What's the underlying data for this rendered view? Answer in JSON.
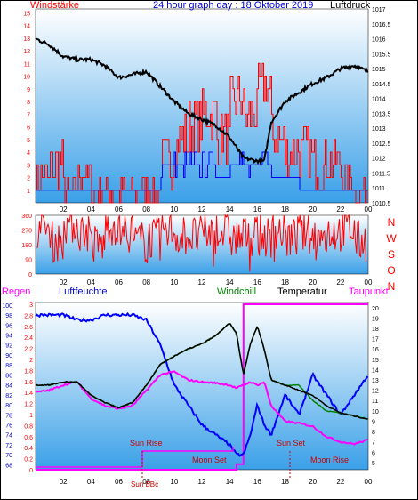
{
  "header": {
    "left_label": "Windstärke",
    "title": "24 hour graph day : 18 Oktober 2019",
    "right_label": "Luftdruck"
  },
  "bottom_labels": {
    "regen": "Regen",
    "luftfeuchte": "Luftfeuchte",
    "windchill": "Windchill",
    "temperatur": "Temperatur",
    "taupunkt": "Taupunkt"
  },
  "direction_labels": [
    "N",
    "W",
    "S",
    "O",
    "N"
  ],
  "events": {
    "sun_rise": "Sun Rise",
    "moon_set": "Moon Set",
    "sun_set": "Sun Set",
    "moon_rise": "Moon Rise",
    "sun_marker": "Sun BBc"
  },
  "colors": {
    "wind_speed": "#ff0000",
    "wind_gust": "#0000ff",
    "pressure": "#000000",
    "humidity": "#0000ff",
    "temperature": "#000000",
    "windchill": "#008000",
    "dewpoint": "#ff00ff",
    "rain": "#ff00ff",
    "plot_top": "#ffffff",
    "plot_bottom": "#3aa0e8"
  },
  "chart_data": [
    {
      "type": "line",
      "name": "wind-pressure",
      "title": "24 hour graph day : 18 Oktober 2019",
      "x_ticks": [
        "02",
        "04",
        "06",
        "08",
        "10",
        "12",
        "14",
        "16",
        "18",
        "20",
        "22",
        "00"
      ],
      "left_axis": {
        "label": "Windstärke",
        "ticks": [
          "1",
          "2",
          "3",
          "4",
          "5",
          "6",
          "7",
          "8",
          "9",
          "10",
          "11",
          "12",
          "13",
          "14",
          "15"
        ],
        "range": [
          0,
          15.3
        ]
      },
      "right_axis": {
        "label": "Luftdruck",
        "ticks": [
          "1010.5",
          "1011",
          "1011.5",
          "1012",
          "1012.5",
          "1013",
          "1013.5",
          "1014",
          "1014.5",
          "1015",
          "1015.5",
          "1016",
          "1016.5",
          "1017"
        ],
        "range": [
          1010.5,
          1017
        ]
      },
      "pressure_hpa": {
        "hours": [
          0,
          1,
          2,
          3,
          4,
          5,
          6,
          7,
          8,
          9,
          10,
          11,
          12,
          13,
          14,
          15,
          16,
          16.5,
          17,
          18,
          19,
          20,
          21,
          22,
          23,
          24
        ],
        "values": [
          1016.0,
          1015.8,
          1015.4,
          1015.3,
          1015.3,
          1015.1,
          1014.7,
          1014.8,
          1014.9,
          1014.4,
          1013.9,
          1013.5,
          1013.3,
          1013.1,
          1012.7,
          1012.0,
          1011.9,
          1011.9,
          1013.2,
          1013.9,
          1014.2,
          1014.5,
          1014.7,
          1015.0,
          1015.1,
          1014.9
        ]
      },
      "wind_speed_bft_hourly": [
        2,
        3,
        1,
        2,
        1,
        1,
        1,
        1,
        1,
        3,
        5,
        6,
        7,
        5,
        8,
        7,
        9,
        5,
        4,
        4,
        3,
        3,
        2,
        1
      ],
      "wind_gust_bft_hourly": [
        1,
        1,
        1,
        1,
        1,
        1,
        1,
        1,
        1,
        3,
        3,
        3,
        3,
        2,
        3,
        3,
        4,
        2,
        2,
        1,
        1,
        1,
        1,
        1
      ]
    },
    {
      "type": "line",
      "name": "wind-direction",
      "x_ticks": [
        "02",
        "04",
        "06",
        "08",
        "10",
        "12",
        "14",
        "16",
        "18",
        "20",
        "22",
        "00"
      ],
      "left_axis": {
        "ticks": [
          "0",
          "90",
          "180",
          "270",
          "360"
        ],
        "range": [
          0,
          360
        ]
      },
      "right_axis": {
        "ticks": [
          "N",
          "W",
          "S",
          "O",
          "N"
        ]
      },
      "direction_deg_hourly": [
        280,
        200,
        310,
        260,
        180,
        300,
        250,
        200,
        220,
        270,
        240,
        230,
        250,
        260,
        220,
        240,
        230,
        260,
        220,
        250,
        230,
        260,
        270,
        200
      ]
    },
    {
      "type": "line",
      "name": "humidity-temperature",
      "x_ticks": [
        "02",
        "04",
        "06",
        "08",
        "10",
        "12",
        "14",
        "16",
        "18",
        "20",
        "22",
        "00"
      ],
      "left_axis": {
        "label": "Regen",
        "ticks": [
          "0",
          "0.2",
          "0.4",
          "0.6",
          "0.8",
          "1",
          "1.2",
          "1.4",
          "1.6",
          "1.8",
          "2",
          "2.2",
          "2.4",
          "2.6",
          "2.8",
          "3"
        ],
        "range": [
          0,
          3
        ]
      },
      "humidity_axis": {
        "label": "Luftfeuchte",
        "ticks": [
          "68",
          "70",
          "72",
          "74",
          "76",
          "78",
          "80",
          "82",
          "84",
          "86",
          "88",
          "90",
          "92",
          "94",
          "96",
          "98",
          "100"
        ],
        "range": [
          67,
          100.5
        ]
      },
      "right_axis": {
        "label": "Temperatur",
        "ticks": [
          "5",
          "6",
          "7",
          "8",
          "9",
          "10",
          "11",
          "12",
          "13",
          "14",
          "15",
          "16",
          "17",
          "18",
          "19",
          "20"
        ],
        "range": [
          4.3,
          20.5
        ]
      },
      "hours": [
        0,
        1,
        2,
        3,
        4,
        5,
        6,
        7,
        8,
        9,
        10,
        11,
        12,
        13,
        14,
        14.5,
        15,
        15.5,
        16,
        16.5,
        17,
        18,
        19,
        20,
        21,
        22,
        23,
        24
      ],
      "temperature_c": [
        12.5,
        12.5,
        12.8,
        12.8,
        11.5,
        10.8,
        10.3,
        10.8,
        12.5,
        14.5,
        15.3,
        16.0,
        16.5,
        17.3,
        18.5,
        17.5,
        13.5,
        16.5,
        18.2,
        16.0,
        13.0,
        12.5,
        12.0,
        11.5,
        10.5,
        9.8,
        9.5,
        9.2
      ],
      "dewpoint_c": [
        11.8,
        12.0,
        12.5,
        12.8,
        11.2,
        10.5,
        10.2,
        10.5,
        12.0,
        13.5,
        13.8,
        13.0,
        12.8,
        12.7,
        12.5,
        12.2,
        12.5,
        12.8,
        12.5,
        12.8,
        10.5,
        9.0,
        8.8,
        8.5,
        7.5,
        7.0,
        6.8,
        7.2
      ],
      "windchill_c": [
        12.5,
        12.5,
        12.8,
        12.8,
        11.5,
        10.8,
        10.3,
        10.8,
        12.5,
        14.5,
        15.3,
        16.0,
        16.5,
        17.3,
        18.5,
        17.5,
        13.5,
        16.5,
        18.2,
        16.0,
        13.0,
        12.5,
        12.5,
        11.0,
        10.0,
        9.8,
        9.5,
        9.2
      ],
      "humidity_pct": [
        98,
        98,
        98,
        97,
        97,
        98,
        98,
        98,
        97,
        92,
        84,
        80,
        76,
        74,
        72,
        70,
        70,
        74,
        80,
        76,
        74,
        82,
        78,
        86,
        82,
        78,
        82,
        86
      ],
      "rain_mm": [
        0,
        0,
        0,
        0,
        0,
        0,
        0,
        0,
        0,
        0,
        0,
        0,
        0,
        0,
        0,
        0.1,
        3.0,
        3.0,
        3.0,
        3.0,
        3.0,
        3.0,
        3.0,
        3.0,
        3.0,
        3.0,
        3.0,
        3.0
      ]
    }
  ]
}
